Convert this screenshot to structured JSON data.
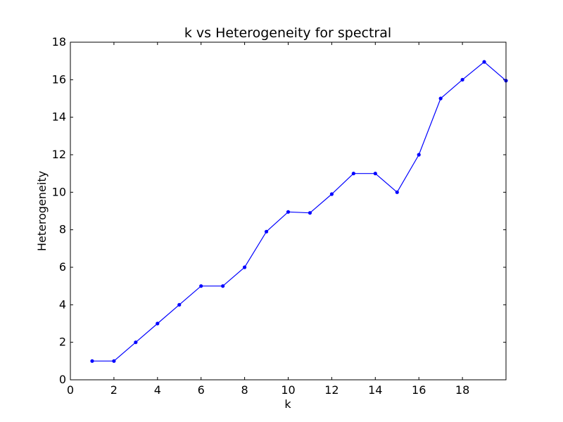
{
  "chart_data": {
    "type": "line",
    "title": "k vs Heterogeneity for spectral",
    "xlabel": "k",
    "ylabel": "Heterogeneity",
    "xlim": [
      0,
      20
    ],
    "ylim": [
      0,
      18
    ],
    "xticks": [
      "0",
      "2",
      "4",
      "6",
      "8",
      "10",
      "12",
      "14",
      "16",
      "18"
    ],
    "yticks": [
      "0",
      "2",
      "4",
      "6",
      "8",
      "10",
      "12",
      "14",
      "16",
      "18"
    ],
    "grid": false,
    "series": [
      {
        "color": "#0000ff",
        "marker": "dot",
        "x": [
          1,
          2,
          3,
          4,
          5,
          6,
          7,
          8,
          9,
          10,
          11,
          12,
          13,
          14,
          15,
          16,
          17,
          18,
          19,
          20
        ],
        "y": [
          1,
          1,
          2,
          3,
          4,
          5,
          5,
          6,
          7.9,
          8.95,
          8.9,
          9.9,
          11,
          11,
          10,
          12,
          15,
          16,
          16.95,
          15.95
        ]
      }
    ]
  }
}
